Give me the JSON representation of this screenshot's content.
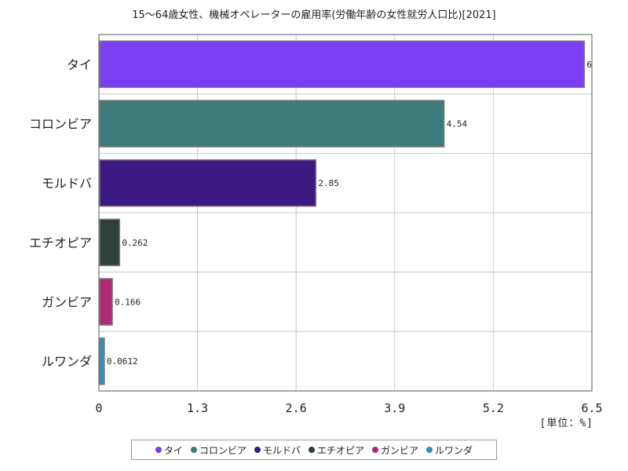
{
  "chart_data": {
    "type": "bar",
    "orientation": "horizontal",
    "title": "15～64歳女性、機械オペレーターの雇用率(労働年齢の女性就労人口比)[2021]",
    "unit_label": "[単位：%]",
    "categories": [
      "タイ",
      "コロンビア",
      "モルドバ",
      "エチオピア",
      "ガンビア",
      "ルワンダ"
    ],
    "values": [
      6.39,
      4.54,
      2.85,
      0.262,
      0.166,
      0.0612
    ],
    "data_labels": [
      "6",
      "4.54",
      "2.85",
      "0.262",
      "0.166",
      "0.0612"
    ],
    "colors": [
      "#7b3ff2",
      "#3d7b7a",
      "#3b1a84",
      "#2f403c",
      "#b02a78",
      "#2f8fbf"
    ],
    "xlim": [
      0,
      6.5
    ],
    "xticks": [
      "0",
      "1.3",
      "2.6",
      "3.9",
      "5.2",
      "6.5"
    ],
    "grid": true,
    "legend_position": "bottom"
  }
}
